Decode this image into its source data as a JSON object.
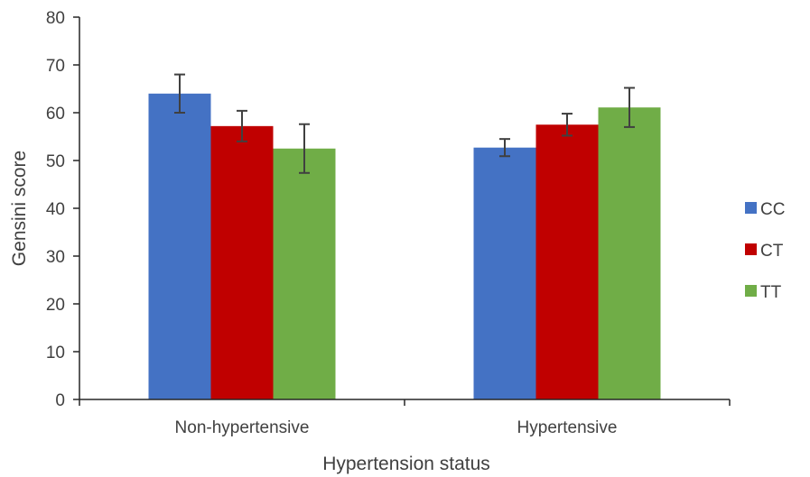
{
  "chart_data": {
    "type": "bar",
    "title": "",
    "xlabel": "Hypertension status",
    "ylabel": "Gensini score",
    "ylim": [
      0,
      80
    ],
    "yticks": [
      "0",
      "10",
      "20",
      "30",
      "40",
      "50",
      "60",
      "70",
      "80"
    ],
    "categories": [
      "Non-hypertensive",
      "Hypertensive"
    ],
    "grid": false,
    "legend_position": "right",
    "series": [
      {
        "name": "CC",
        "color": "#4472C4",
        "values": [
          64.0,
          52.7
        ],
        "error": [
          4.0,
          1.8
        ]
      },
      {
        "name": "CT",
        "color": "#C00000",
        "values": [
          57.2,
          57.5
        ],
        "error": [
          3.2,
          2.3
        ]
      },
      {
        "name": "TT",
        "color": "#70AD47",
        "values": [
          52.5,
          61.1
        ],
        "error": [
          5.1,
          4.1
        ]
      }
    ]
  }
}
